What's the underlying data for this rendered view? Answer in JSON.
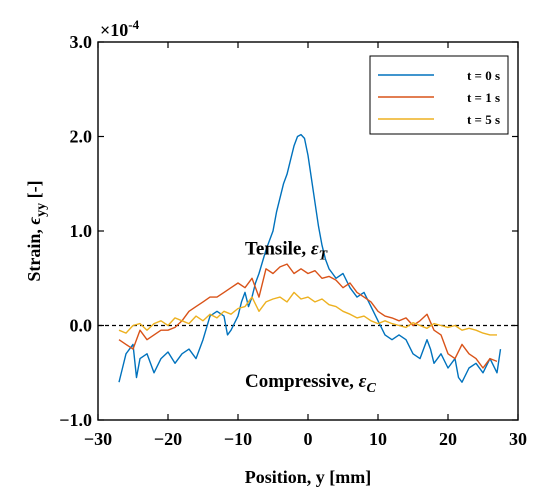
{
  "chart_data": {
    "type": "line",
    "xlabel": "Position, y [mm]",
    "ylabel_prefix": "Strain, ",
    "ylabel_symbol": "ϵ",
    "ylabel_subscript": "yy",
    "ylabel_suffix": " [-]",
    "y_multiplier": "×10",
    "y_multiplier_exp": "-4",
    "xlim": [
      -30,
      30
    ],
    "ylim": [
      -1.0,
      3.0
    ],
    "x_ticks": [
      "−30",
      "−20",
      "−10",
      "0",
      "10",
      "20",
      "30"
    ],
    "y_ticks": [
      "−1.0",
      "0.0",
      "1.0",
      "2.0",
      "3.0"
    ],
    "legend_position": "top-right",
    "grid": false,
    "reference_line": {
      "y": 0,
      "style": "dashed"
    },
    "annotations": {
      "tensile": {
        "text": "Tensile, ",
        "symbol": "ε",
        "subscript": "T",
        "x": -9,
        "y": 0.75
      },
      "compressive": {
        "text": "Compressive, ",
        "symbol": "ε",
        "subscript": "C",
        "x": -9,
        "y": -0.65
      }
    },
    "series": [
      {
        "name": "t = 0 s",
        "color": "#0072BD",
        "x": [
          -27,
          -26.5,
          -26,
          -25,
          -24.5,
          -24,
          -23,
          -22,
          -21,
          -20,
          -19,
          -18,
          -17,
          -16,
          -15,
          -14,
          -13,
          -12,
          -11.5,
          -11,
          -10,
          -9.5,
          -9,
          -8.5,
          -8,
          -7.5,
          -7,
          -6,
          -5,
          -4.5,
          -4,
          -3.5,
          -3,
          -2.5,
          -2,
          -1.5,
          -1,
          -0.5,
          0,
          0.5,
          1,
          1.5,
          2,
          2.5,
          3,
          3.5,
          4,
          5,
          6,
          7,
          8,
          9,
          10,
          11,
          12,
          13,
          14,
          15,
          16,
          17,
          17.5,
          18,
          19,
          20,
          21,
          21.5,
          22,
          23,
          24,
          25,
          26,
          27,
          27.5
        ],
        "y": [
          -0.6,
          -0.45,
          -0.3,
          -0.2,
          -0.55,
          -0.35,
          -0.3,
          -0.5,
          -0.35,
          -0.28,
          -0.4,
          -0.3,
          -0.25,
          -0.35,
          -0.15,
          0.1,
          0.15,
          0.1,
          -0.1,
          -0.05,
          0.1,
          0.25,
          0.35,
          0.2,
          0.3,
          0.45,
          0.55,
          0.8,
          1.0,
          1.2,
          1.35,
          1.5,
          1.6,
          1.75,
          1.9,
          2.0,
          2.02,
          1.98,
          1.8,
          1.55,
          1.3,
          1.05,
          0.85,
          0.7,
          0.6,
          0.55,
          0.5,
          0.55,
          0.4,
          0.3,
          0.35,
          0.2,
          0.05,
          -0.1,
          -0.15,
          -0.1,
          -0.15,
          -0.3,
          -0.35,
          -0.15,
          -0.25,
          -0.4,
          -0.3,
          -0.45,
          -0.35,
          -0.55,
          -0.6,
          -0.45,
          -0.4,
          -0.5,
          -0.35,
          -0.5,
          -0.25
        ]
      },
      {
        "name": "t = 1 s",
        "color": "#D95319",
        "x": [
          -27,
          -26,
          -25,
          -24,
          -23,
          -22,
          -21,
          -20,
          -19,
          -18,
          -17,
          -16,
          -15,
          -14,
          -13,
          -12,
          -11,
          -10,
          -9,
          -8,
          -7,
          -6,
          -5,
          -4,
          -3,
          -2,
          -1,
          0,
          1,
          2,
          3,
          4,
          5,
          6,
          7,
          8,
          9,
          10,
          11,
          12,
          13,
          14,
          15,
          16,
          17,
          18,
          19,
          20,
          21,
          22,
          23,
          24,
          25,
          26,
          27
        ],
        "y": [
          -0.15,
          -0.2,
          -0.25,
          -0.05,
          -0.15,
          -0.1,
          -0.05,
          -0.05,
          -0.02,
          0.05,
          0.15,
          0.2,
          0.25,
          0.3,
          0.3,
          0.35,
          0.4,
          0.45,
          0.4,
          0.5,
          0.3,
          0.6,
          0.55,
          0.62,
          0.65,
          0.55,
          0.6,
          0.55,
          0.58,
          0.5,
          0.52,
          0.48,
          0.4,
          0.45,
          0.35,
          0.3,
          0.25,
          0.15,
          0.1,
          0.08,
          0.05,
          0.08,
          0.0,
          0.05,
          0.12,
          -0.05,
          -0.1,
          -0.3,
          -0.35,
          -0.2,
          -0.3,
          -0.35,
          -0.45,
          -0.35,
          -0.38
        ]
      },
      {
        "name": "t = 5 s",
        "color": "#EDB120",
        "x": [
          -27,
          -26,
          -25,
          -24,
          -23,
          -22,
          -21,
          -20,
          -19,
          -18,
          -17,
          -16,
          -15,
          -14,
          -13,
          -12,
          -11,
          -10,
          -9,
          -8,
          -7,
          -6,
          -5,
          -4,
          -3,
          -2,
          -1,
          0,
          1,
          2,
          3,
          4,
          5,
          6,
          7,
          8,
          9,
          10,
          11,
          12,
          13,
          14,
          15,
          16,
          17,
          18,
          19,
          20,
          21,
          22,
          23,
          24,
          25,
          26,
          27
        ],
        "y": [
          -0.05,
          -0.08,
          0.0,
          0.02,
          -0.05,
          0.02,
          0.05,
          0.0,
          0.08,
          0.05,
          0.02,
          0.1,
          0.05,
          0.12,
          0.08,
          0.15,
          0.12,
          0.18,
          0.2,
          0.3,
          0.15,
          0.25,
          0.28,
          0.3,
          0.25,
          0.35,
          0.28,
          0.3,
          0.25,
          0.28,
          0.22,
          0.2,
          0.15,
          0.12,
          0.08,
          0.1,
          0.05,
          0.02,
          0.05,
          0.02,
          0.0,
          -0.02,
          0.03,
          0.0,
          -0.03,
          0.02,
          0.0,
          -0.02,
          0.0,
          -0.05,
          -0.03,
          -0.05,
          -0.08,
          -0.1,
          -0.1
        ]
      }
    ]
  }
}
